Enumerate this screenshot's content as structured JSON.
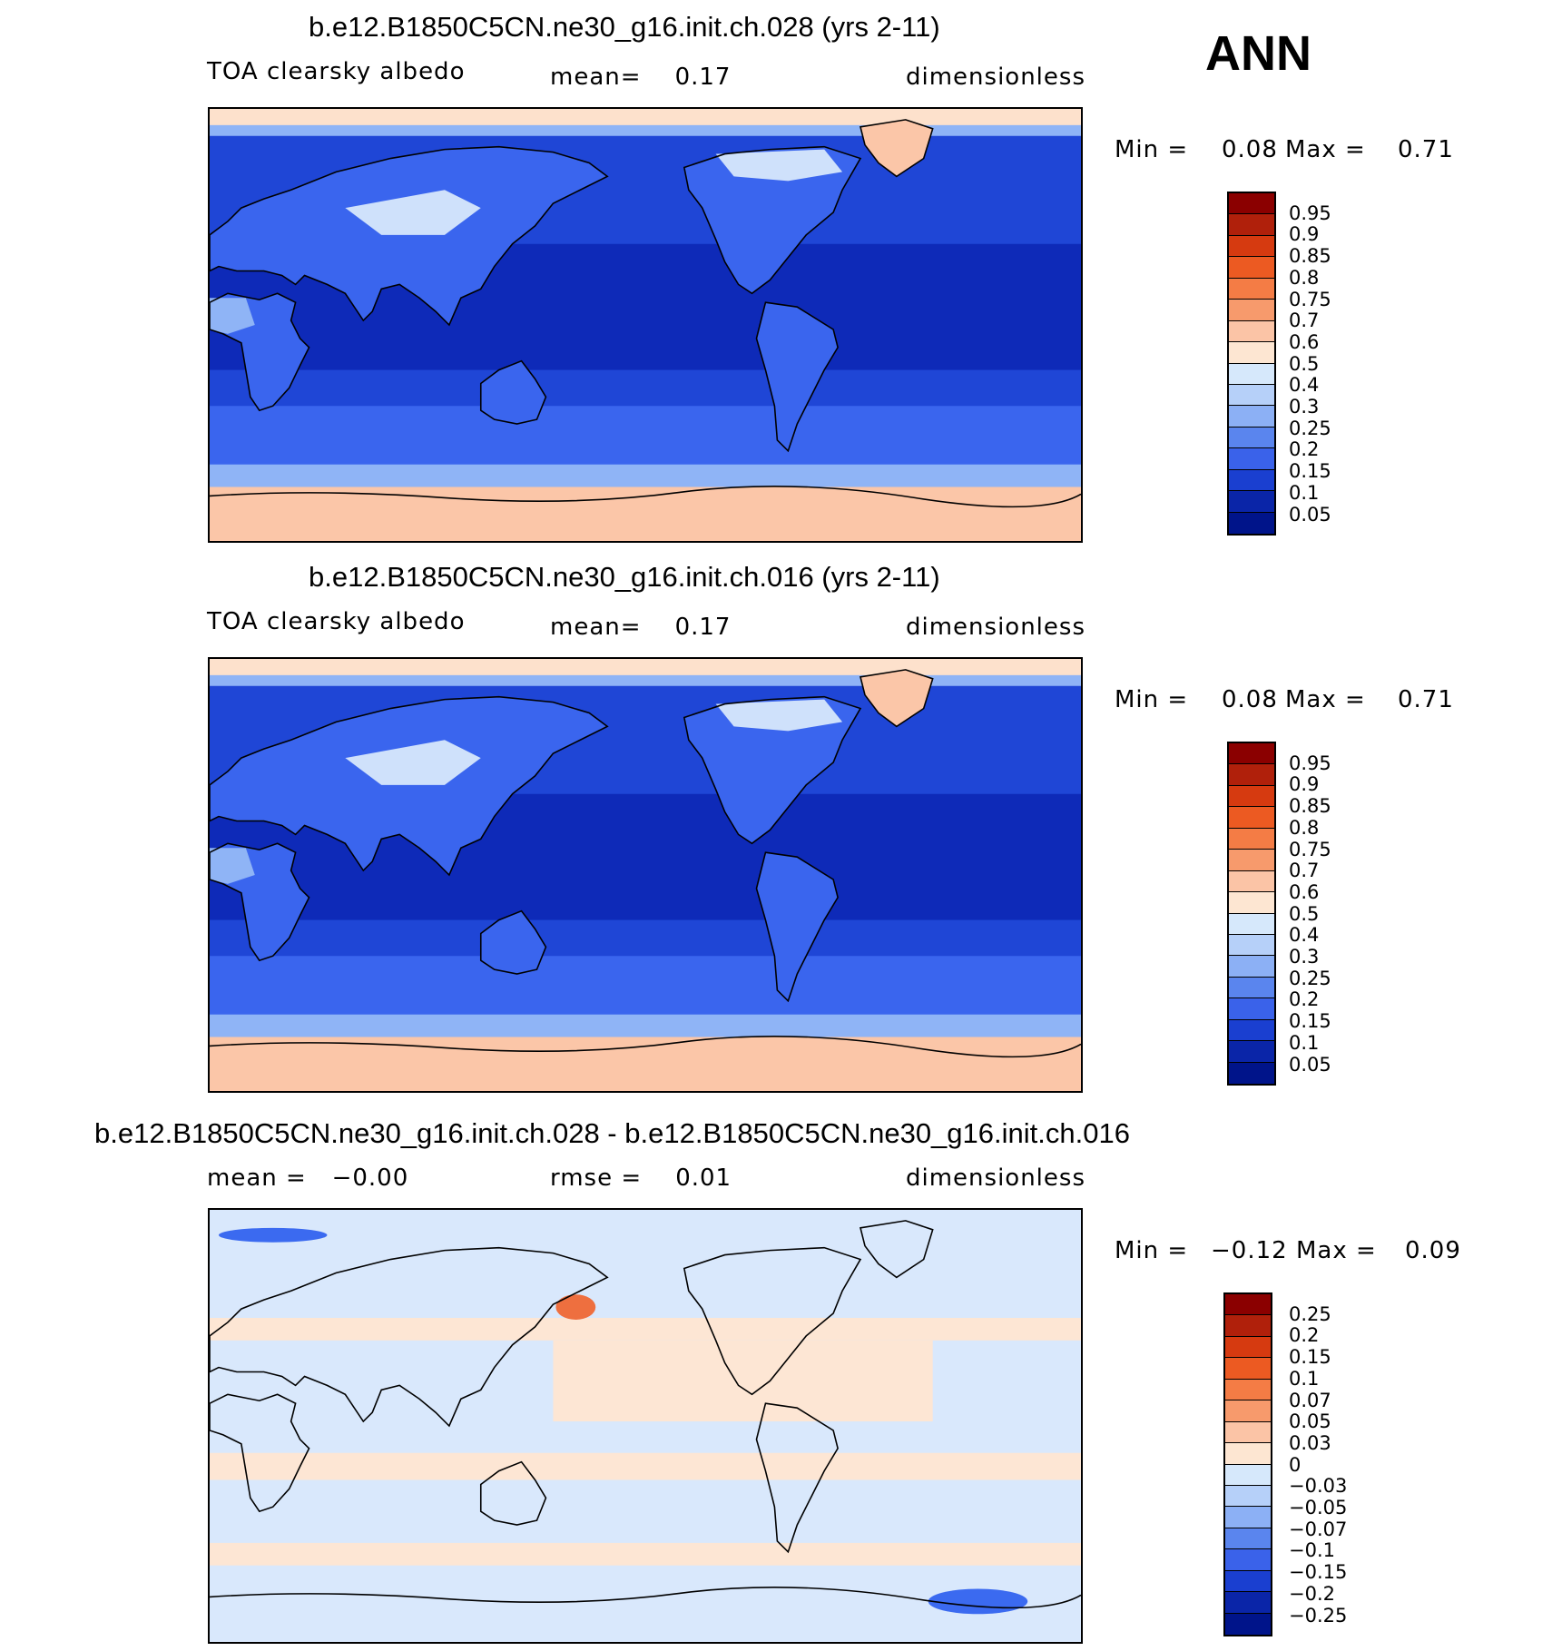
{
  "season": "ANN",
  "panels": [
    {
      "title": "b.e12.B1850C5CN.ne30_g16.init.ch.028 (yrs 2-11)",
      "field": "TOA clearsky albedo",
      "stat": "mean=    0.17",
      "units": "dimensionless",
      "min_label": "Min =",
      "min_value": "0.08",
      "max_label": "Max =",
      "max_value": "0.71",
      "levels": [
        "0.95",
        "0.9",
        "0.85",
        "0.8",
        "0.75",
        "0.7",
        "0.6",
        "0.5",
        "0.4",
        "0.3",
        "0.25",
        "0.2",
        "0.15",
        "0.1",
        "0.05"
      ]
    },
    {
      "title": "b.e12.B1850C5CN.ne30_g16.init.ch.016 (yrs 2-11)",
      "field": "TOA clearsky albedo",
      "stat": "mean=    0.17",
      "units": "dimensionless",
      "min_label": "Min =",
      "min_value": "0.08",
      "max_label": "Max =",
      "max_value": "0.71",
      "levels": [
        "0.95",
        "0.9",
        "0.85",
        "0.8",
        "0.75",
        "0.7",
        "0.6",
        "0.5",
        "0.4",
        "0.3",
        "0.25",
        "0.2",
        "0.15",
        "0.1",
        "0.05"
      ]
    },
    {
      "title": "b.e12.B1850C5CN.ne30_g16.init.ch.028 - b.e12.B1850C5CN.ne30_g16.init.ch.016",
      "stat": "mean =   −0.00",
      "rmse": "rmse =    0.01",
      "units": "dimensionless",
      "min_label": "Min =",
      "min_value": "−0.12",
      "max_label": "Max =",
      "max_value": "0.09",
      "levels": [
        "0.25",
        "0.2",
        "0.15",
        "0.1",
        "0.07",
        "0.05",
        "0.03",
        "0",
        "−0.03",
        "−0.05",
        "−0.07",
        "−0.1",
        "−0.15",
        "−0.2",
        "−0.25"
      ]
    }
  ],
  "colorbar_colors": [
    "#8b0000",
    "#b0200b",
    "#d63a10",
    "#ec5a22",
    "#f47c45",
    "#f79a6c",
    "#fbc4a6",
    "#fde6d2",
    "#d6e8fb",
    "#b6d0f9",
    "#8cb0f5",
    "#5a85ee",
    "#3a62ea",
    "#1a3fd0",
    "#0a25a8",
    "#00148a"
  ],
  "map_colors": {
    "deep": "#0e2ab8",
    "mid": "#1f46d6",
    "light": "#3a65ee",
    "pale": "#8fb4f6",
    "verypale": "#cfe1fb",
    "ice": "#fbc6a8",
    "icelight": "#fde1cc",
    "diff_neg": "#d9e8fc",
    "diff_pos": "#fde6d4",
    "diff_red": "#ee6f3f",
    "diff_blue": "#3b6af0"
  }
}
